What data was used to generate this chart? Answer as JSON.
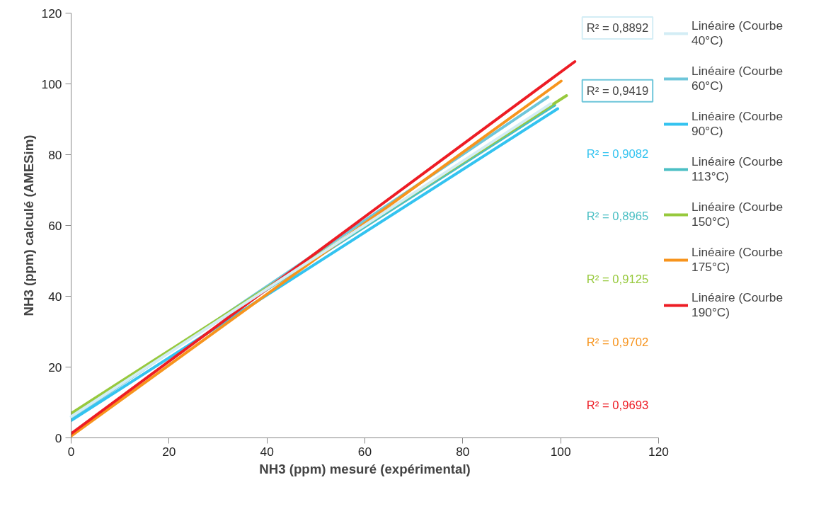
{
  "chart_data": {
    "type": "line",
    "xlabel": "NH3 (ppm) mesuré (expérimental)",
    "ylabel": "NH3 (ppm) calculé (AMESim)",
    "xlim": [
      0,
      120
    ],
    "ylim": [
      0,
      120
    ],
    "xticks": [
      0,
      20,
      40,
      60,
      80,
      100,
      120
    ],
    "yticks": [
      0,
      20,
      40,
      60,
      80,
      100,
      120
    ],
    "grid": false,
    "legend": "right",
    "marker": "none",
    "line_style": "solid",
    "series": [
      {
        "name": "Linéaire (Courbe 40°C)",
        "color": "#d3edf5",
        "x": [
          0,
          98
        ],
        "values": [
          6,
          94.4
        ]
      },
      {
        "name": "Linéaire (Courbe 60°C)",
        "color": "#6ec6da",
        "x": [
          0,
          97.4
        ],
        "values": [
          5.5,
          96.3
        ]
      },
      {
        "name": "Linéaire (Courbe 90°C)",
        "color": "#33c3f0",
        "x": [
          0,
          99.4
        ],
        "values": [
          4.9,
          93
        ]
      },
      {
        "name": "Linéaire (Courbe 113°C)",
        "color": "#4bbfc4",
        "x": [
          0,
          98.8
        ],
        "values": [
          6.5,
          94
        ]
      },
      {
        "name": "Linéaire (Courbe 150°C)",
        "color": "#97c93d",
        "x": [
          0,
          101.2
        ],
        "values": [
          6.9,
          96.7
        ]
      },
      {
        "name": "Linéaire (Courbe 175°C)",
        "color": "#f7941d",
        "x": [
          0,
          100.1
        ],
        "values": [
          0.5,
          100.8
        ]
      },
      {
        "name": "Linéaire (Courbe 190°C)",
        "color": "#ed1c24",
        "x": [
          0,
          102.9
        ],
        "values": [
          1.2,
          106.3
        ]
      }
    ],
    "annotations": [
      "R² = 0,8892",
      "R² = 0,9419",
      "R² = 0,9082",
      "R² = 0,8965",
      "R² = 0,9125",
      "R² = 0,9702",
      "R² = 0,9693"
    ]
  }
}
